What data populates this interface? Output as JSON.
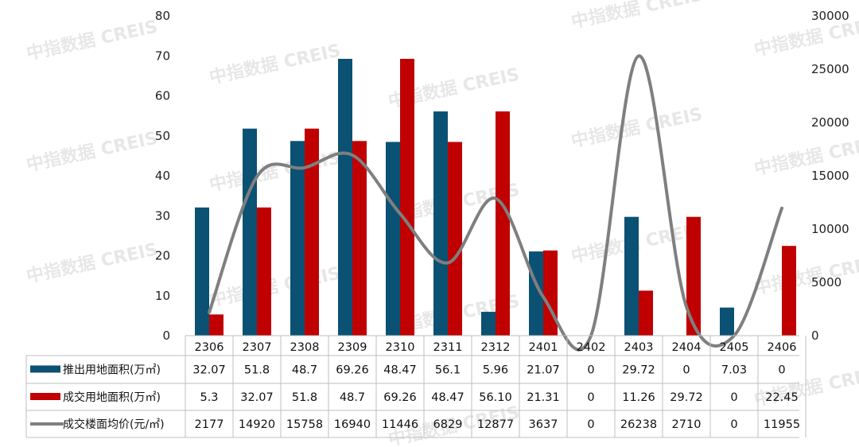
{
  "watermark": "中指数据 CREIS",
  "chart_data": {
    "type": "bar",
    "categories": [
      "2306",
      "2307",
      "2308",
      "2309",
      "2310",
      "2311",
      "2312",
      "2401",
      "2402",
      "2403",
      "2404",
      "2405",
      "2406"
    ],
    "series": [
      {
        "name": "推出用地面积(万㎡)",
        "type": "bar",
        "axis": "left",
        "color": "#0b5173",
        "values": [
          32.07,
          51.8,
          48.7,
          69.26,
          48.47,
          56.1,
          5.96,
          21.07,
          0,
          29.72,
          0,
          7.03,
          0
        ],
        "labels": [
          "32.07",
          "51.8",
          "48.7",
          "69.26",
          "48.47",
          "56.1",
          "5.96",
          "21.07",
          "0",
          "29.72",
          "0",
          "7.03",
          "0"
        ]
      },
      {
        "name": "成交用地面积(万㎡)",
        "type": "bar",
        "axis": "left",
        "color": "#c00000",
        "values": [
          5.3,
          32.07,
          51.8,
          48.7,
          69.26,
          48.47,
          56.1,
          21.31,
          0,
          11.26,
          29.72,
          0,
          22.45
        ],
        "labels": [
          "5.3",
          "32.07",
          "51.8",
          "48.7",
          "69.26",
          "48.47",
          "56.10",
          "21.31",
          "0",
          "11.26",
          "29.72",
          "0",
          "22.45"
        ]
      },
      {
        "name": "成交楼面均价(元/㎡)",
        "type": "line",
        "axis": "right",
        "color": "#7f7f7f",
        "values": [
          2177,
          14920,
          15758,
          16940,
          11446,
          6829,
          12877,
          3637,
          0,
          26238,
          2710,
          0,
          11955
        ],
        "labels": [
          "2177",
          "14920",
          "15758",
          "16940",
          "11446",
          "6829",
          "12877",
          "3637",
          "0",
          "26238",
          "2710",
          "0",
          "11955"
        ]
      }
    ],
    "y_left": {
      "range": [
        0,
        80
      ],
      "ticks": [
        "0",
        "10",
        "20",
        "30",
        "40",
        "50",
        "60",
        "70",
        "80"
      ]
    },
    "y_right": {
      "range": [
        0,
        30000
      ],
      "ticks": [
        "0",
        "5000",
        "10000",
        "15000",
        "20000",
        "25000",
        "30000"
      ]
    },
    "legend": "data-table-below",
    "grid": false,
    "title": "",
    "xlabel": "",
    "ylabel": ""
  }
}
